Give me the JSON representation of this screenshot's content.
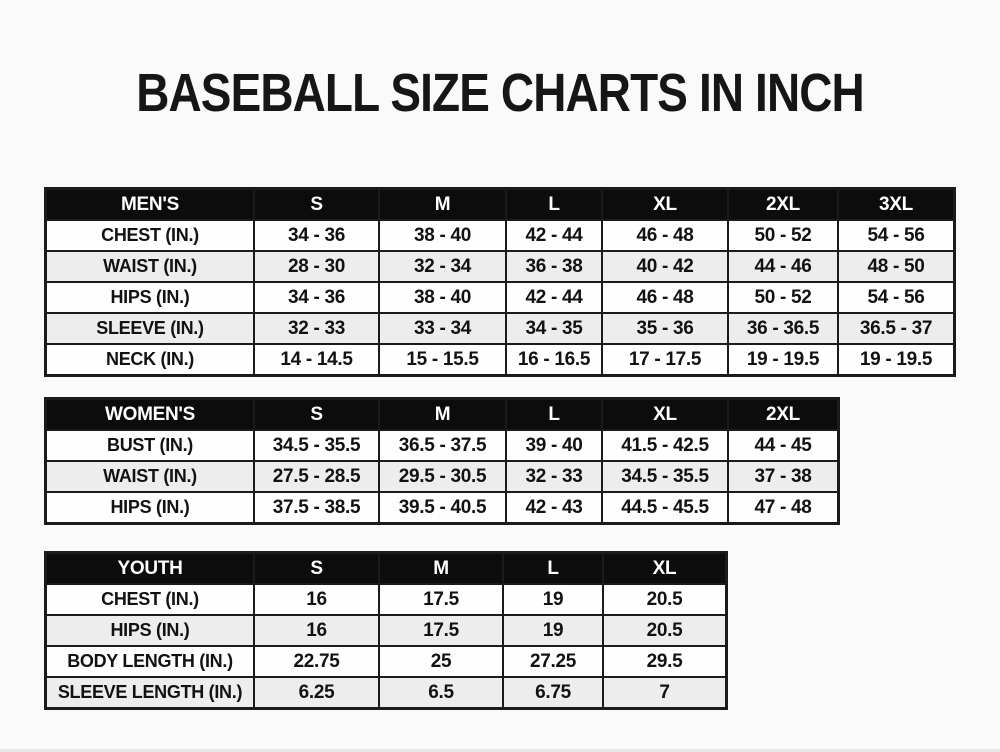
{
  "page": {
    "title": "BASEBALL SIZE CHARTS IN INCH"
  },
  "colors": {
    "page_bg": "#fbfafa",
    "header_bg": "#0c0c0c",
    "header_text": "#ffffff",
    "row_alt": "#ededed",
    "border": "#1b1b1b"
  },
  "chart_data": [
    {
      "type": "table",
      "title": "MEN'S",
      "columns": [
        "MEN'S",
        "S",
        "M",
        "L",
        "XL",
        "2XL",
        "3XL"
      ],
      "rows": [
        [
          "CHEST (IN.)",
          "34 - 36",
          "38 - 40",
          "42 - 44",
          "46 - 48",
          "50 - 52",
          "54 - 56"
        ],
        [
          "WAIST (IN.)",
          "28 - 30",
          "32 - 34",
          "36 - 38",
          "40 - 42",
          "44 - 46",
          "48 - 50"
        ],
        [
          "HIPS (IN.)",
          "34 - 36",
          "38 - 40",
          "42 - 44",
          "46 - 48",
          "50 - 52",
          "54 - 56"
        ],
        [
          "SLEEVE (IN.)",
          "32 - 33",
          "33 - 34",
          "34 - 35",
          "35 - 36",
          "36 - 36.5",
          "36.5 - 37"
        ],
        [
          "NECK (IN.)",
          "14 - 14.5",
          "15 - 15.5",
          "16 - 16.5",
          "17 - 17.5",
          "19 - 19.5",
          "19 - 19.5"
        ]
      ]
    },
    {
      "type": "table",
      "title": "WOMEN'S",
      "columns": [
        "WOMEN'S",
        "S",
        "M",
        "L",
        "XL",
        "2XL"
      ],
      "rows": [
        [
          "BUST (IN.)",
          "34.5 - 35.5",
          "36.5 - 37.5",
          "39 - 40",
          "41.5 - 42.5",
          "44 - 45"
        ],
        [
          "WAIST (IN.)",
          "27.5 - 28.5",
          "29.5 - 30.5",
          "32 - 33",
          "34.5 - 35.5",
          "37 - 38"
        ],
        [
          "HIPS (IN.)",
          "37.5 - 38.5",
          "39.5 - 40.5",
          "42 - 43",
          "44.5 - 45.5",
          "47 - 48"
        ]
      ]
    },
    {
      "type": "table",
      "title": "YOUTH",
      "columns": [
        "YOUTH",
        "S",
        "M",
        "L",
        "XL"
      ],
      "rows": [
        [
          "CHEST (IN.)",
          "16",
          "17.5",
          "19",
          "20.5"
        ],
        [
          "HIPS (IN.)",
          "16",
          "17.5",
          "19",
          "20.5"
        ],
        [
          "BODY LENGTH (IN.)",
          "22.75",
          "25",
          "27.25",
          "29.5"
        ],
        [
          "SLEEVE LENGTH (IN.)",
          "6.25",
          "6.5",
          "6.75",
          "7"
        ]
      ]
    }
  ]
}
